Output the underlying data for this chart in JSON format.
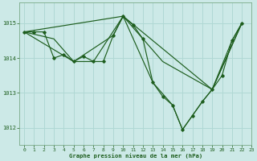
{
  "title": "Graphe pression niveau de la mer (hPa)",
  "bg_color": "#cce9e7",
  "line_color": "#1e5e1e",
  "grid_color": "#b0d8d4",
  "xlim": [
    -0.5,
    23
  ],
  "ylim": [
    1011.5,
    1015.6
  ],
  "yticks": [
    1012,
    1013,
    1014,
    1015
  ],
  "xticks": [
    0,
    1,
    2,
    3,
    4,
    5,
    6,
    7,
    8,
    9,
    10,
    11,
    12,
    13,
    14,
    15,
    16,
    17,
    18,
    19,
    20,
    21,
    22,
    23
  ],
  "series_main_x": [
    0,
    1,
    2,
    3,
    4,
    5,
    6,
    7,
    8,
    9,
    10,
    11,
    12,
    13,
    14,
    15,
    16,
    17,
    18,
    19,
    20,
    21,
    22
  ],
  "series_main_y": [
    1014.75,
    1014.75,
    1014.75,
    1014.0,
    1014.1,
    1013.9,
    1014.05,
    1013.9,
    1013.9,
    1014.65,
    1015.2,
    1014.95,
    1014.55,
    1013.3,
    1012.9,
    1012.65,
    1011.95,
    1012.35,
    1012.75,
    1013.1,
    1013.5,
    1014.5,
    1015.0
  ],
  "series2_x": [
    0,
    3,
    5,
    7,
    10,
    12,
    14,
    19,
    22
  ],
  "series2_y": [
    1014.75,
    1014.55,
    1013.9,
    1013.9,
    1015.2,
    1014.55,
    1013.9,
    1013.1,
    1015.0
  ],
  "series3_x": [
    0,
    5,
    9,
    10,
    13,
    15,
    16,
    18,
    19,
    21,
    22
  ],
  "series3_y": [
    1014.75,
    1013.9,
    1014.65,
    1015.2,
    1013.3,
    1012.65,
    1011.95,
    1012.75,
    1013.1,
    1014.5,
    1015.0
  ],
  "series4_x": [
    0,
    10,
    19,
    22
  ],
  "series4_y": [
    1014.75,
    1015.2,
    1013.1,
    1015.0
  ]
}
